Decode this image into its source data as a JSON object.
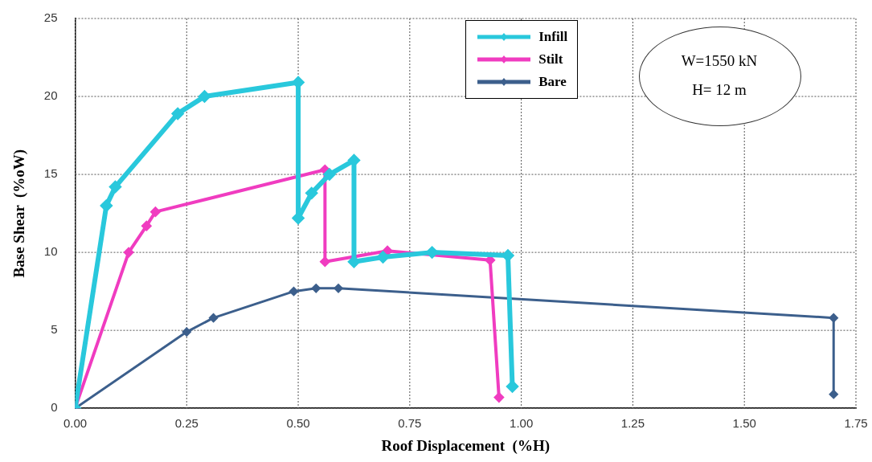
{
  "chart_data": {
    "type": "line",
    "xlabel": "Roof Displacement  (%H)",
    "ylabel": "Base Shear  (%oW)",
    "annotations": [
      "W=1550 kN",
      "H= 12 m"
    ],
    "xlim": [
      0,
      1.75
    ],
    "xticks": [
      {
        "value": 0,
        "label": "0.00"
      },
      {
        "value": 0.25,
        "label": "0.25"
      },
      {
        "value": 0.5,
        "label": "0.50"
      },
      {
        "value": 0.75,
        "label": "0.75"
      },
      {
        "value": 1,
        "label": "1.00"
      },
      {
        "value": 1.25,
        "label": "1.25"
      },
      {
        "value": 1.5,
        "label": "1.50"
      },
      {
        "value": 1.75,
        "label": "1.75"
      }
    ],
    "ylim": [
      0,
      25
    ],
    "yticks": [
      0,
      5,
      10,
      15,
      20,
      25
    ],
    "grid": true,
    "legend": "top",
    "marker": "diamond",
    "line_style": "solid",
    "series": [
      {
        "name": "Infill",
        "color": "#29c8dc",
        "x": [
          0,
          0.07,
          0.09,
          0.23,
          0.29,
          0.5,
          0.5,
          0.53,
          0.57,
          0.625,
          0.625,
          0.69,
          0.8,
          0.97,
          0.98
        ],
        "values": [
          0,
          13,
          14.2,
          18.9,
          20,
          20.9,
          12.2,
          13.8,
          15,
          15.9,
          9.4,
          9.7,
          10,
          9.8,
          1.4
        ]
      },
      {
        "name": "Stilt",
        "color": "#f03cc0",
        "x": [
          0,
          0.12,
          0.16,
          0.18,
          0.56,
          0.56,
          0.7,
          0.93,
          0.95
        ],
        "values": [
          0,
          10,
          11.7,
          12.6,
          15.3,
          9.4,
          10.1,
          9.5,
          0.7
        ]
      },
      {
        "name": "Bare",
        "color": "#3c5f8c",
        "x": [
          0,
          0.25,
          0.31,
          0.49,
          0.54,
          0.59,
          1.7,
          1.7
        ],
        "values": [
          0,
          4.9,
          5.8,
          7.5,
          7.7,
          7.7,
          5.8,
          0.9
        ]
      }
    ]
  }
}
